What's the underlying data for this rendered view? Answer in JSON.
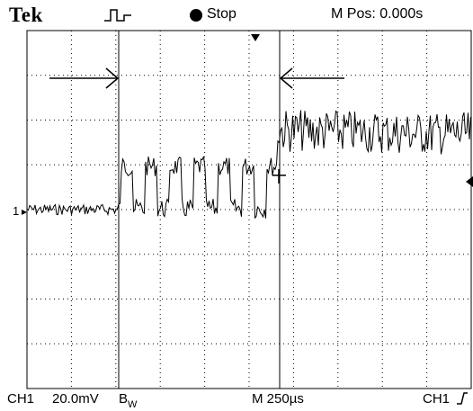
{
  "header": {
    "brand": "Tek",
    "trigger_icon": "pulse-trigger-icon",
    "run_state": "Stop",
    "m_pos": "M Pos: 0.000s"
  },
  "screen": {
    "ch1_marker": "1",
    "trigger_level_icon": "trigger-level-arrow-icon",
    "trigger_pos_icon": "trigger-position-arrow-icon",
    "cursor_arrows": [
      "right-arrow-icon",
      "left-arrow-icon"
    ]
  },
  "footer": {
    "ch1_label": "CH1",
    "volts_div": "20.0mV",
    "bw_limit": "B",
    "bw_sub": "W",
    "timebase": "M 250µs",
    "trig_source": "CH1",
    "trig_edge_icon": "rising-edge-icon"
  },
  "colors": {
    "trace": "#000000",
    "graticule": "#000000",
    "background": "#ffffff"
  }
}
